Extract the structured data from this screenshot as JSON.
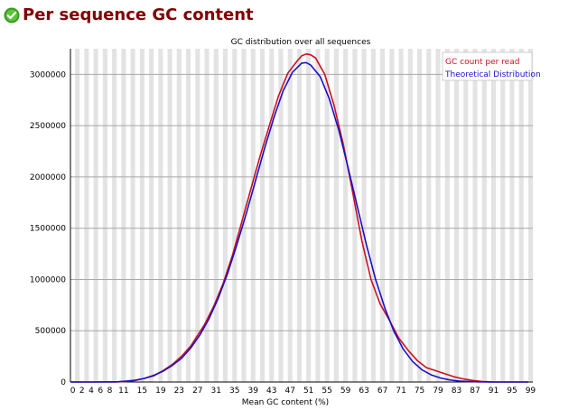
{
  "page": {
    "title": "Per sequence GC content",
    "status_icon": "check-circle-icon",
    "status_color": "#3a9a1c"
  },
  "chart_data": {
    "type": "line",
    "title": "GC distribution over all sequences",
    "xlabel": "Mean GC content (%)",
    "ylabel": "",
    "xlim": [
      0,
      100
    ],
    "ylim": [
      0,
      3250000
    ],
    "grid": true,
    "legend_position": "top-right",
    "x_ticks": [
      0,
      2,
      4,
      6,
      8,
      11,
      15,
      19,
      23,
      27,
      31,
      35,
      39,
      43,
      47,
      51,
      55,
      59,
      63,
      67,
      71,
      75,
      79,
      83,
      87,
      91,
      95,
      99
    ],
    "y_ticks": [
      0,
      500000,
      1000000,
      1500000,
      2000000,
      2500000,
      3000000
    ],
    "y_tick_labels": [
      "0",
      "500000",
      "1000000",
      "1500000",
      "2000000",
      "2500000",
      "3000000"
    ],
    "series": [
      {
        "name": "GC count per read",
        "color": "#cc1020",
        "x": [
          0,
          5,
          10,
          12,
          14,
          16,
          18,
          20,
          22,
          24,
          26,
          27,
          29,
          31,
          33,
          35,
          37,
          39,
          41,
          43,
          45,
          47,
          49,
          50,
          51,
          52,
          53,
          55,
          57,
          59,
          61,
          63,
          65,
          67,
          69,
          71,
          73,
          75,
          77,
          79,
          81,
          83,
          85,
          87,
          89,
          91,
          93,
          95,
          97,
          99
        ],
        "values": [
          0,
          0,
          1000,
          5000,
          15000,
          35000,
          60000,
          110000,
          170000,
          250000,
          350000,
          420000,
          560000,
          740000,
          960000,
          1230000,
          1550000,
          1880000,
          2200000,
          2500000,
          2790000,
          3010000,
          3130000,
          3180000,
          3200000,
          3190000,
          3160000,
          3000000,
          2700000,
          2320000,
          1860000,
          1380000,
          1000000,
          760000,
          600000,
          430000,
          310000,
          210000,
          140000,
          110000,
          80000,
          50000,
          30000,
          15000,
          5000,
          1000,
          0,
          0,
          0,
          0
        ]
      },
      {
        "name": "Theoretical Distribution",
        "color": "#1a10c8",
        "x": [
          0,
          5,
          10,
          12,
          14,
          16,
          18,
          20,
          22,
          24,
          26,
          28,
          30,
          32,
          34,
          36,
          38,
          40,
          42,
          44,
          46,
          48,
          50,
          51,
          52,
          54,
          56,
          58,
          60,
          62,
          64,
          66,
          68,
          70,
          72,
          74,
          76,
          78,
          80,
          82,
          84,
          86,
          88,
          90,
          92,
          95,
          99
        ],
        "values": [
          0,
          0,
          2000,
          8000,
          18000,
          35000,
          65000,
          105000,
          160000,
          230000,
          330000,
          460000,
          620000,
          820000,
          1060000,
          1340000,
          1640000,
          1960000,
          2280000,
          2580000,
          2840000,
          3020000,
          3110000,
          3115000,
          3090000,
          2980000,
          2760000,
          2460000,
          2100000,
          1720000,
          1340000,
          1000000,
          720000,
          490000,
          320000,
          200000,
          120000,
          70000,
          40000,
          20000,
          10000,
          5000,
          2000,
          800,
          200,
          0,
          0
        ]
      }
    ]
  }
}
